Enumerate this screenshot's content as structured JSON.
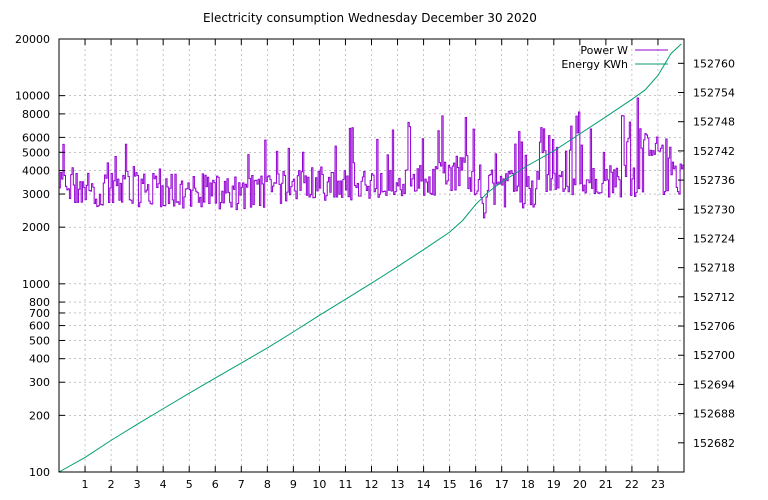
{
  "chart_data": {
    "type": "line",
    "title": "Electricity consumption Wednesday December 30 2020",
    "x": {
      "range": [
        0,
        24
      ],
      "ticks": [
        1,
        2,
        3,
        4,
        5,
        6,
        7,
        8,
        9,
        10,
        11,
        12,
        13,
        14,
        15,
        16,
        17,
        18,
        19,
        20,
        21,
        22,
        23
      ]
    },
    "y_left": {
      "scale": "log",
      "range": [
        100,
        20000
      ],
      "ticks": [
        100,
        200,
        300,
        400,
        500,
        600,
        700,
        800,
        1000,
        2000,
        3000,
        4000,
        5000,
        6000,
        8000,
        10000,
        20000
      ]
    },
    "y_right": {
      "range": [
        152676,
        152765
      ],
      "ticks": [
        152682,
        152688,
        152694,
        152700,
        152706,
        152712,
        152718,
        152724,
        152730,
        152736,
        152742,
        152748,
        152754,
        152760
      ]
    },
    "grid": true,
    "legend_position": "top-right",
    "series": [
      {
        "name": "Power W",
        "axis": "left",
        "color": "#9400d3",
        "profile_hours": [
          0,
          1,
          2,
          3,
          4,
          5,
          6,
          7,
          8,
          9,
          10,
          11,
          12,
          13,
          14,
          15,
          15.5,
          16,
          16.2,
          16.5,
          17,
          18,
          19,
          20,
          21,
          22,
          22.5,
          23,
          23.5,
          24
        ],
        "baseline": [
          3200,
          3300,
          3200,
          3200,
          3200,
          3100,
          3100,
          3100,
          3200,
          3300,
          3300,
          3300,
          3300,
          3400,
          3500,
          3700,
          4200,
          3600,
          2500,
          3300,
          3400,
          3300,
          3300,
          3400,
          3500,
          3600,
          5200,
          5000,
          4000,
          3800
        ],
        "peaks": [
          6000,
          4500,
          5500,
          5800,
          4000,
          4000,
          4000,
          4500,
          6000,
          5500,
          6000,
          7000,
          8000,
          7000,
          9000,
          9000,
          9000,
          8000,
          4000,
          8000,
          7000,
          7000,
          7000,
          9000,
          8000,
          9000,
          12000,
          8000,
          5500,
          5000
        ],
        "troughs": [
          2800,
          2700,
          2700,
          2700,
          2700,
          2600,
          2600,
          2600,
          2700,
          2900,
          2900,
          2900,
          3000,
          3000,
          3000,
          3200,
          3200,
          3000,
          2000,
          2800,
          2700,
          2600,
          2700,
          3000,
          3000,
          3000,
          3200,
          3200,
          2900,
          3000
        ]
      },
      {
        "name": "Energy KWh",
        "axis": "right",
        "color": "#009e73",
        "x": [
          0,
          1,
          2,
          3,
          4,
          5,
          6,
          7,
          8,
          9,
          10,
          11,
          12,
          13,
          14,
          15,
          15.5,
          16,
          16.5,
          17,
          18,
          19,
          20,
          21,
          22,
          22.5,
          23,
          23.5,
          23.9
        ],
        "y": [
          152676,
          152679,
          152682.5,
          152685.8,
          152689,
          152692.2,
          152695.3,
          152698.4,
          152701.5,
          152704.8,
          152708.2,
          152711.5,
          152714.8,
          152718.2,
          152721.7,
          152725.3,
          152727.7,
          152731,
          152733.6,
          152735.6,
          152739,
          152742,
          152745.5,
          152749,
          152752.6,
          152754.5,
          152757.5,
          152762,
          152764
        ]
      }
    ]
  }
}
